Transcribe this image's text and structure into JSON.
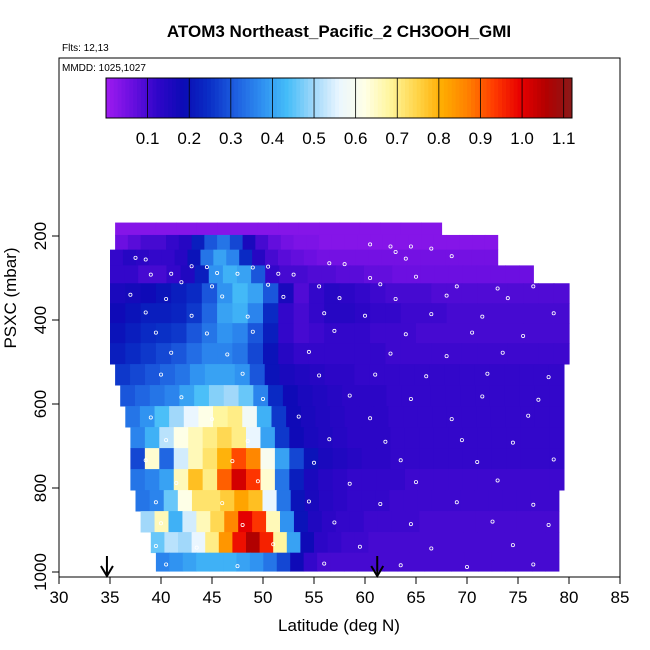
{
  "chart_data": {
    "type": "heatmap",
    "title": "ATOM3 Northeast_Pacific_2 CH3OOH_GMI",
    "subtitle_lines": [
      "Flts: 12,13",
      "MMDD: 1025,1027"
    ],
    "xlabel": "Latitude (deg N)",
    "ylabel": "PSXC (mbar)",
    "xlim": [
      30,
      85
    ],
    "ylim": [
      1000,
      0
    ],
    "x_ticks": [
      30,
      35,
      40,
      45,
      50,
      55,
      60,
      65,
      70,
      75,
      80,
      85
    ],
    "y_ticks": [
      200,
      400,
      600,
      800,
      1000
    ],
    "colorbar": {
      "min": 0.0,
      "max": 1.12,
      "ticks": [
        0.1,
        0.2,
        0.3,
        0.4,
        0.5,
        0.6,
        0.7,
        0.8,
        0.9,
        1.0,
        1.1
      ],
      "tick_labels": [
        "0.1",
        "0.2",
        "0.3",
        "0.4",
        "0.5",
        "0.6",
        "0.7",
        "0.8",
        "0.9",
        "1.0",
        "1.1"
      ],
      "colors": [
        "#9F1BF0",
        "#6A0FE0",
        "#2F06C8",
        "#0B0BB5",
        "#0A2FC6",
        "#1E5FE0",
        "#2E8EF0",
        "#45BDF8",
        "#9ED7FA",
        "#EAF6FF",
        "#FFFFE6",
        "#FFF59A",
        "#FFD54A",
        "#FFAC00",
        "#FF7F00",
        "#FF3A00",
        "#E80000",
        "#B20000",
        "#8A1A1A"
      ]
    },
    "arrows_at_latitude": [
      34.7,
      61.2
    ],
    "levels": [
      {
        "p": 180,
        "lat_start": 35.5,
        "lat_end": 67.5,
        "values": [
          0.03,
          0.03,
          0.03,
          0.03,
          0.03,
          0.03,
          0.03,
          0.03,
          0.03,
          0.03,
          0.03,
          0.03,
          0.03,
          0.03,
          0.03,
          0.03
        ]
      },
      {
        "p": 215,
        "lat_start": 35.5,
        "lat_end": 73.0,
        "values": [
          0.06,
          0.08,
          0.1,
          0.1,
          0.12,
          0.14,
          0.22,
          0.3,
          0.34,
          0.28,
          0.16,
          0.1,
          0.07,
          0.05,
          0.04,
          0.04,
          0.03,
          0.03,
          0.03,
          0.03,
          0.03,
          0.03,
          0.03,
          0.03,
          0.03,
          0.03,
          0.03,
          0.03,
          0.03,
          0.03
        ]
      },
      {
        "p": 250,
        "lat_start": 35.0,
        "lat_end": 73.0,
        "values": [
          0.12,
          0.14,
          0.13,
          0.12,
          0.12,
          0.14,
          0.2,
          0.34,
          0.4,
          0.36,
          0.24,
          0.14,
          0.1,
          0.08,
          0.07,
          0.06,
          0.05,
          0.05,
          0.05,
          0.05,
          0.05,
          0.05,
          0.05,
          0.05,
          0.05,
          0.05,
          0.05,
          0.05,
          0.05,
          0.05
        ]
      },
      {
        "p": 290,
        "lat_start": 35.0,
        "lat_end": 76.5,
        "values": [
          0.12,
          0.12,
          0.1,
          0.1,
          0.12,
          0.15,
          0.22,
          0.38,
          0.42,
          0.4,
          0.3,
          0.12,
          0.1,
          0.1,
          0.09,
          0.09,
          0.08,
          0.08,
          0.07,
          0.07,
          0.06,
          0.06,
          0.06,
          0.06,
          0.06,
          0.06,
          0.06,
          0.06,
          0.06,
          0.06
        ]
      },
      {
        "p": 335,
        "lat_start": 35.0,
        "lat_end": 80.0,
        "values": [
          0.16,
          0.17,
          0.18,
          0.2,
          0.22,
          0.24,
          0.3,
          0.38,
          0.43,
          0.4,
          0.3,
          0.16,
          0.09,
          0.12,
          0.14,
          0.13,
          0.12,
          0.11,
          0.1,
          0.1,
          0.1,
          0.09,
          0.09,
          0.09,
          0.09,
          0.09,
          0.09,
          0.09,
          0.09,
          0.09
        ]
      },
      {
        "p": 385,
        "lat_start": 35.0,
        "lat_end": 80.0,
        "values": [
          0.18,
          0.2,
          0.22,
          0.22,
          0.23,
          0.26,
          0.32,
          0.4,
          0.42,
          0.36,
          0.24,
          0.12,
          0.1,
          0.12,
          0.14,
          0.14,
          0.13,
          0.12,
          0.12,
          0.11,
          0.11,
          0.11,
          0.1,
          0.1,
          0.1,
          0.1,
          0.1,
          0.1,
          0.1,
          0.1
        ]
      },
      {
        "p": 430,
        "lat_start": 35.0,
        "lat_end": 80.0,
        "values": [
          0.2,
          0.22,
          0.24,
          0.25,
          0.26,
          0.3,
          0.34,
          0.38,
          0.36,
          0.3,
          0.22,
          0.12,
          0.1,
          0.11,
          0.12,
          0.12,
          0.12,
          0.11,
          0.11,
          0.11,
          0.1,
          0.1,
          0.1,
          0.1,
          0.1,
          0.1,
          0.1,
          0.1,
          0.1,
          0.1
        ]
      },
      {
        "p": 480,
        "lat_start": 35.0,
        "lat_end": 80.0,
        "values": [
          0.22,
          0.24,
          0.26,
          0.28,
          0.3,
          0.33,
          0.36,
          0.36,
          0.34,
          0.28,
          0.2,
          0.14,
          0.12,
          0.12,
          0.12,
          0.12,
          0.12,
          0.12,
          0.11,
          0.11,
          0.11,
          0.11,
          0.11,
          0.11,
          0.11,
          0.11,
          0.11,
          0.11,
          0.11,
          0.11
        ]
      },
      {
        "p": 530,
        "lat_start": 35.5,
        "lat_end": 79.5,
        "values": [
          0.26,
          0.28,
          0.3,
          0.32,
          0.34,
          0.38,
          0.4,
          0.4,
          0.38,
          0.3,
          0.2,
          0.16,
          0.15,
          0.14,
          0.13,
          0.13,
          0.12,
          0.12,
          0.12,
          0.12,
          0.12,
          0.12,
          0.12,
          0.12,
          0.12,
          0.12,
          0.12,
          0.12,
          0.12,
          0.12
        ]
      },
      {
        "p": 580,
        "lat_start": 36.0,
        "lat_end": 79.5,
        "values": [
          0.3,
          0.32,
          0.34,
          0.36,
          0.4,
          0.44,
          0.48,
          0.5,
          0.46,
          0.36,
          0.24,
          0.18,
          0.16,
          0.15,
          0.14,
          0.13,
          0.13,
          0.13,
          0.12,
          0.12,
          0.12,
          0.12,
          0.12,
          0.12,
          0.12,
          0.12,
          0.12,
          0.12,
          0.12,
          0.12
        ]
      },
      {
        "p": 630,
        "lat_start": 36.5,
        "lat_end": 79.5,
        "values": [
          0.34,
          0.38,
          0.44,
          0.5,
          0.56,
          0.62,
          0.68,
          0.7,
          0.58,
          0.42,
          0.26,
          0.18,
          0.16,
          0.15,
          0.14,
          0.13,
          0.13,
          0.13,
          0.12,
          0.12,
          0.12,
          0.12,
          0.12,
          0.12,
          0.12,
          0.12,
          0.12,
          0.12,
          0.12,
          0.12
        ]
      },
      {
        "p": 680,
        "lat_start": 37.0,
        "lat_end": 79.5,
        "values": [
          0.36,
          0.42,
          0.52,
          0.62,
          0.66,
          0.7,
          0.74,
          0.7,
          0.56,
          0.4,
          0.26,
          0.18,
          0.16,
          0.15,
          0.14,
          0.13,
          0.13,
          0.13,
          0.12,
          0.12,
          0.12,
          0.12,
          0.12,
          0.12,
          0.12,
          0.12,
          0.12,
          0.12,
          0.12,
          0.12
        ]
      },
      {
        "p": 730,
        "lat_start": 37.0,
        "lat_end": 79.5,
        "values": [
          0.28,
          0.64,
          0.32,
          0.54,
          0.66,
          0.72,
          0.8,
          0.92,
          0.86,
          0.6,
          0.4,
          0.28,
          0.2,
          0.16,
          0.15,
          0.14,
          0.13,
          0.13,
          0.12,
          0.12,
          0.12,
          0.12,
          0.12,
          0.12,
          0.12,
          0.12,
          0.12,
          0.12,
          0.12,
          0.12
        ]
      },
      {
        "p": 780,
        "lat_start": 37.0,
        "lat_end": 79.5,
        "values": [
          0.34,
          0.36,
          0.4,
          0.66,
          0.78,
          0.7,
          0.9,
          1.02,
          0.94,
          0.64,
          0.34,
          0.22,
          0.16,
          0.14,
          0.13,
          0.12,
          0.12,
          0.12,
          0.12,
          0.11,
          0.11,
          0.11,
          0.11,
          0.11,
          0.11,
          0.11,
          0.11,
          0.11,
          0.11,
          0.11
        ]
      },
      {
        "p": 830,
        "lat_start": 37.5,
        "lat_end": 79.0,
        "values": [
          0.34,
          0.36,
          0.46,
          0.62,
          0.72,
          0.72,
          0.76,
          0.82,
          0.78,
          0.56,
          0.34,
          0.2,
          0.16,
          0.14,
          0.13,
          0.12,
          0.12,
          0.12,
          0.11,
          0.11,
          0.11,
          0.11,
          0.11,
          0.11,
          0.11,
          0.11,
          0.11,
          0.11,
          0.11,
          0.11
        ]
      },
      {
        "p": 880,
        "lat_start": 38.0,
        "lat_end": 79.0,
        "values": [
          0.5,
          0.66,
          0.42,
          0.54,
          0.66,
          0.74,
          0.86,
          1.0,
          0.94,
          0.66,
          0.38,
          0.2,
          0.15,
          0.13,
          0.12,
          0.12,
          0.11,
          0.11,
          0.11,
          0.11,
          0.1,
          0.1,
          0.1,
          0.1,
          0.1,
          0.1,
          0.1,
          0.1,
          0.1,
          0.1
        ]
      },
      {
        "p": 930,
        "lat_start": 39.0,
        "lat_end": 79.0,
        "values": [
          0.46,
          0.52,
          0.5,
          0.56,
          0.7,
          0.84,
          0.98,
          1.06,
          0.96,
          0.68,
          0.4,
          0.18,
          0.13,
          0.12,
          0.11,
          0.11,
          0.1,
          0.1,
          0.1,
          0.1,
          0.1,
          0.1,
          0.1,
          0.1,
          0.1,
          0.1,
          0.1,
          0.1,
          0.1,
          0.1
        ]
      },
      {
        "p": 978,
        "lat_start": 39.5,
        "lat_end": 79.0,
        "values": [
          0.36,
          0.38,
          0.4,
          0.42,
          0.42,
          0.42,
          0.4,
          0.38,
          0.34,
          0.28,
          0.18,
          0.12,
          0.1,
          0.1,
          0.1,
          0.1,
          0.1,
          0.1,
          0.1,
          0.1,
          0.1,
          0.1,
          0.1,
          0.1,
          0.1,
          0.1,
          0.1,
          0.1,
          0.1,
          0.1
        ]
      }
    ],
    "sample_points": [
      [
        60.5,
        220
      ],
      [
        62.5,
        225
      ],
      [
        64.5,
        225
      ],
      [
        66.5,
        230
      ],
      [
        63.0,
        238
      ],
      [
        68.5,
        248
      ],
      [
        64.0,
        254
      ],
      [
        37.5,
        252
      ],
      [
        38.5,
        256
      ],
      [
        43.0,
        272
      ],
      [
        44.5,
        274
      ],
      [
        49.0,
        275
      ],
      [
        50.5,
        273
      ],
      [
        56.5,
        265
      ],
      [
        58.0,
        267
      ],
      [
        39.0,
        292
      ],
      [
        41.0,
        290
      ],
      [
        45.5,
        288
      ],
      [
        47.5,
        290
      ],
      [
        51.5,
        290
      ],
      [
        53.0,
        292
      ],
      [
        60.5,
        300
      ],
      [
        65.0,
        297
      ],
      [
        42.0,
        310
      ],
      [
        45.0,
        320
      ],
      [
        50.5,
        316
      ],
      [
        55.5,
        320
      ],
      [
        61.5,
        315
      ],
      [
        69.0,
        320
      ],
      [
        73.0,
        325
      ],
      [
        76.5,
        320
      ],
      [
        37.0,
        340
      ],
      [
        40.5,
        350
      ],
      [
        46.0,
        344
      ],
      [
        52.0,
        345
      ],
      [
        57.5,
        348
      ],
      [
        63.0,
        350
      ],
      [
        68.0,
        342
      ],
      [
        74.0,
        348
      ],
      [
        38.5,
        382
      ],
      [
        43.0,
        390
      ],
      [
        48.5,
        392
      ],
      [
        56.0,
        384
      ],
      [
        60.0,
        390
      ],
      [
        66.5,
        386
      ],
      [
        71.5,
        392
      ],
      [
        78.5,
        384
      ],
      [
        39.5,
        430
      ],
      [
        44.5,
        432
      ],
      [
        49.0,
        428
      ],
      [
        57.0,
        426
      ],
      [
        64.0,
        434
      ],
      [
        70.5,
        430
      ],
      [
        75.5,
        438
      ],
      [
        41.0,
        478
      ],
      [
        46.5,
        482
      ],
      [
        54.5,
        476
      ],
      [
        62.5,
        480
      ],
      [
        68.0,
        486
      ],
      [
        73.5,
        478
      ],
      [
        40.0,
        530
      ],
      [
        48.0,
        528
      ],
      [
        55.5,
        532
      ],
      [
        61.0,
        530
      ],
      [
        66.0,
        534
      ],
      [
        72.0,
        528
      ],
      [
        78.0,
        536
      ],
      [
        42.0,
        584
      ],
      [
        50.0,
        588
      ],
      [
        58.5,
        580
      ],
      [
        64.5,
        588
      ],
      [
        71.5,
        582
      ],
      [
        77.0,
        590
      ],
      [
        39.0,
        632
      ],
      [
        45.0,
        636
      ],
      [
        53.5,
        630
      ],
      [
        60.5,
        634
      ],
      [
        68.5,
        636
      ],
      [
        76.0,
        628
      ],
      [
        40.5,
        686
      ],
      [
        48.5,
        688
      ],
      [
        56.5,
        684
      ],
      [
        62.0,
        690
      ],
      [
        69.5,
        686
      ],
      [
        74.5,
        692
      ],
      [
        38.5,
        734
      ],
      [
        47.0,
        736
      ],
      [
        55.0,
        740
      ],
      [
        63.5,
        734
      ],
      [
        71.0,
        738
      ],
      [
        78.5,
        732
      ],
      [
        41.5,
        788
      ],
      [
        49.5,
        784
      ],
      [
        58.5,
        790
      ],
      [
        65.0,
        786
      ],
      [
        73.0,
        782
      ],
      [
        39.5,
        834
      ],
      [
        46.0,
        836
      ],
      [
        54.5,
        832
      ],
      [
        61.5,
        838
      ],
      [
        69.0,
        834
      ],
      [
        76.5,
        840
      ],
      [
        40.0,
        884
      ],
      [
        48.0,
        888
      ],
      [
        57.0,
        882
      ],
      [
        64.5,
        886
      ],
      [
        72.5,
        880
      ],
      [
        78.0,
        888
      ],
      [
        39.5,
        938
      ],
      [
        43.5,
        942
      ],
      [
        51.0,
        934
      ],
      [
        59.5,
        940
      ],
      [
        66.5,
        944
      ],
      [
        74.5,
        936
      ],
      [
        40.5,
        982
      ],
      [
        47.5,
        986
      ],
      [
        56.0,
        980
      ],
      [
        63.5,
        984
      ],
      [
        70.0,
        988
      ],
      [
        76.5,
        982
      ]
    ]
  }
}
